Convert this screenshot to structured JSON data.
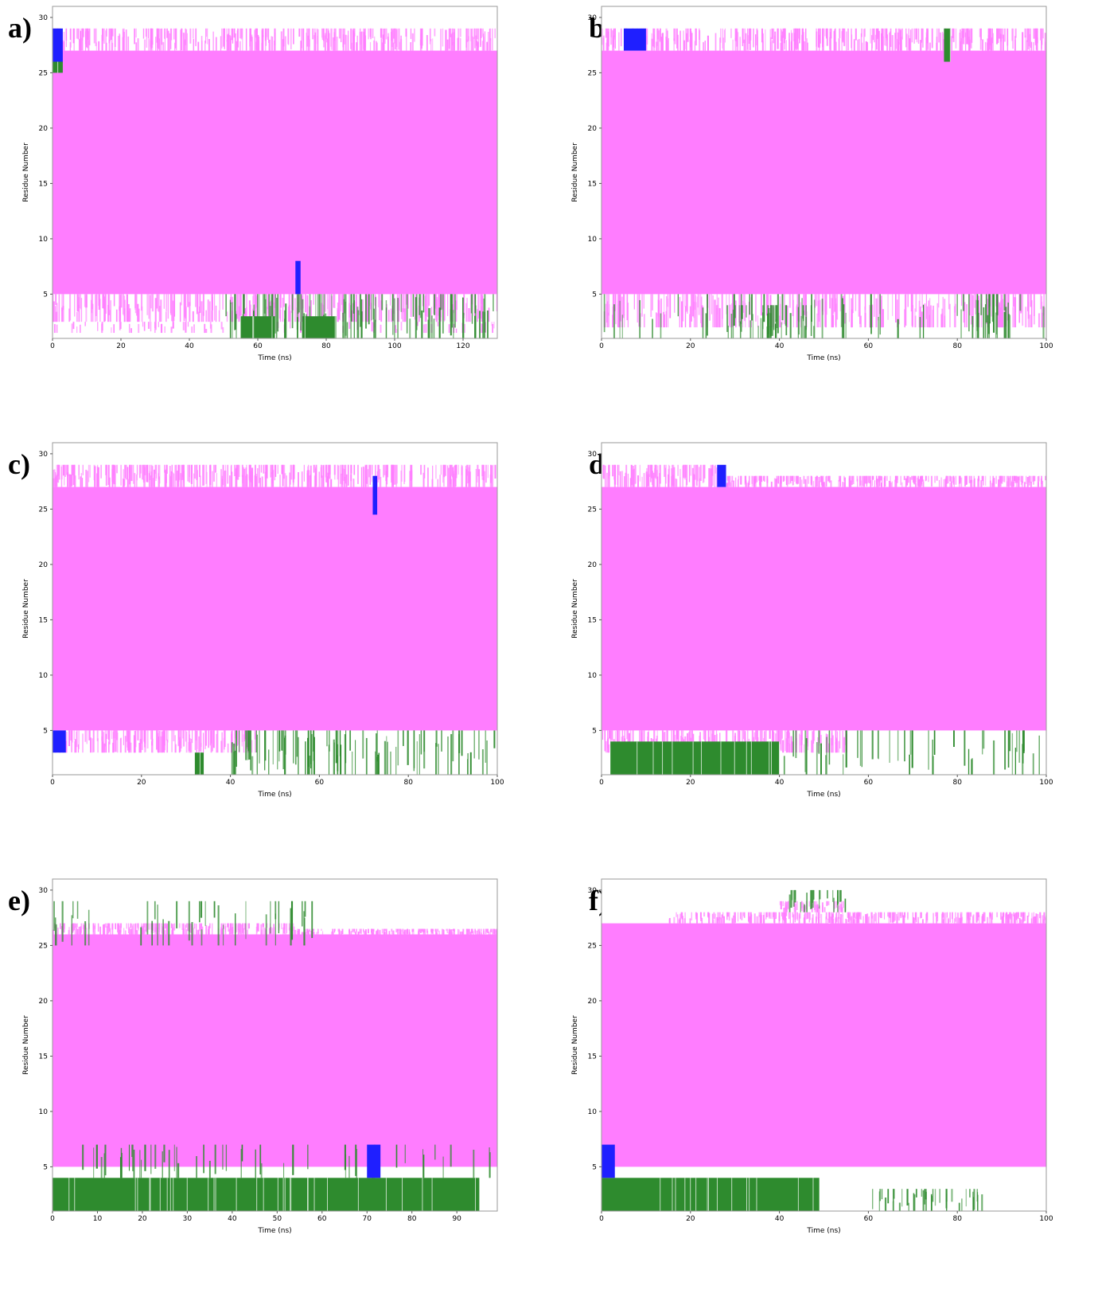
{
  "colors": {
    "coil": "#ff7dff",
    "turn": "#2e8b2e",
    "helix_310": "#1f1fff",
    "background": "#ffffff",
    "frame": "#9a9a9a"
  },
  "chart_data": [
    {
      "panel": "a)",
      "type": "heatmap",
      "xlabel": "Time (ns)",
      "ylabel": "Residue Number",
      "xlim": [
        0,
        130
      ],
      "ylim": [
        1,
        31
      ],
      "xticks": [
        0,
        20,
        40,
        60,
        80,
        100,
        120
      ],
      "yticks": [
        5,
        10,
        15,
        20,
        25,
        30
      ],
      "coil_core": [
        {
          "x": [
            0,
            130
          ],
          "y": [
            5,
            27
          ]
        }
      ],
      "coil_edges": [
        {
          "x": [
            0,
            130
          ],
          "y": [
            27,
            29
          ],
          "density": 0.7
        },
        {
          "x": [
            0,
            130
          ],
          "y": [
            2.5,
            5
          ],
          "density": 0.6
        },
        {
          "x": [
            0,
            130
          ],
          "y": [
            1.5,
            2.5
          ],
          "density": 0.15
        }
      ],
      "turn_blocks": [
        {
          "x": [
            55,
            65
          ],
          "y": [
            1,
            3
          ]
        },
        {
          "x": [
            73,
            83
          ],
          "y": [
            1,
            3
          ]
        },
        {
          "x": [
            0,
            3
          ],
          "y": [
            25,
            26
          ]
        }
      ],
      "turn_sparse": [
        {
          "x": [
            50,
            130
          ],
          "y": [
            1,
            5
          ],
          "density": 0.35
        }
      ],
      "helix_blocks": [
        {
          "x": [
            0,
            3
          ],
          "y": [
            26,
            29
          ]
        },
        {
          "x": [
            71,
            72.5
          ],
          "y": [
            5,
            8
          ]
        }
      ]
    },
    {
      "panel": "b)",
      "type": "heatmap",
      "xlabel": "Time (ns)",
      "ylabel": "Residue Number",
      "xlim": [
        0,
        100
      ],
      "ylim": [
        1,
        31
      ],
      "xticks": [
        0,
        20,
        40,
        60,
        80,
        100
      ],
      "yticks": [
        5,
        10,
        15,
        20,
        25,
        30
      ],
      "coil_core": [
        {
          "x": [
            0,
            100
          ],
          "y": [
            5,
            27
          ]
        }
      ],
      "coil_edges": [
        {
          "x": [
            0,
            100
          ],
          "y": [
            27,
            29
          ],
          "density": 0.7
        },
        {
          "x": [
            0,
            100
          ],
          "y": [
            2,
            5
          ],
          "density": 0.55
        }
      ],
      "turn_blocks": [
        {
          "x": [
            77,
            78.5
          ],
          "y": [
            26,
            29
          ]
        }
      ],
      "turn_sparse": [
        {
          "x": [
            28,
            48
          ],
          "y": [
            1,
            4
          ],
          "density": 0.4
        },
        {
          "x": [
            83,
            92
          ],
          "y": [
            1,
            5
          ],
          "density": 0.5
        },
        {
          "x": [
            0,
            100
          ],
          "y": [
            1,
            5
          ],
          "density": 0.08
        }
      ],
      "helix_blocks": [
        {
          "x": [
            5,
            10
          ],
          "y": [
            27,
            29
          ]
        }
      ]
    },
    {
      "panel": "c)",
      "type": "heatmap",
      "xlabel": "Time (ns)",
      "ylabel": "Residue Number",
      "xlim": [
        0,
        100
      ],
      "ylim": [
        1,
        31
      ],
      "xticks": [
        0,
        20,
        40,
        60,
        80,
        100
      ],
      "yticks": [
        5,
        10,
        15,
        20,
        25,
        30
      ],
      "coil_core": [
        {
          "x": [
            0,
            100
          ],
          "y": [
            5,
            27
          ]
        }
      ],
      "coil_edges": [
        {
          "x": [
            0,
            100
          ],
          "y": [
            27,
            29
          ],
          "density": 0.75
        },
        {
          "x": [
            0,
            46
          ],
          "y": [
            3,
            5
          ],
          "density": 0.7
        }
      ],
      "turn_blocks": [
        {
          "x": [
            32,
            34
          ],
          "y": [
            1,
            3
          ]
        }
      ],
      "turn_sparse": [
        {
          "x": [
            40,
            100
          ],
          "y": [
            1,
            5
          ],
          "density": 0.3
        }
      ],
      "helix_blocks": [
        {
          "x": [
            0,
            3
          ],
          "y": [
            3,
            5
          ]
        },
        {
          "x": [
            72,
            73
          ],
          "y": [
            24.5,
            28
          ]
        }
      ]
    },
    {
      "panel": "d)",
      "type": "heatmap",
      "xlabel": "Time (ns)",
      "ylabel": "Residue Number",
      "xlim": [
        0,
        100
      ],
      "ylim": [
        1,
        31
      ],
      "xticks": [
        0,
        20,
        40,
        60,
        80,
        100
      ],
      "yticks": [
        5,
        10,
        15,
        20,
        25,
        30
      ],
      "coil_core": [
        {
          "x": [
            0,
            100
          ],
          "y": [
            5,
            27
          ]
        }
      ],
      "coil_edges": [
        {
          "x": [
            0,
            26
          ],
          "y": [
            27,
            29
          ],
          "density": 0.75
        },
        {
          "x": [
            26,
            100
          ],
          "y": [
            27,
            28
          ],
          "density": 0.75
        },
        {
          "x": [
            0,
            55
          ],
          "y": [
            3,
            5
          ],
          "density": 0.7
        }
      ],
      "turn_blocks": [
        {
          "x": [
            2,
            40
          ],
          "y": [
            1,
            4
          ]
        }
      ],
      "turn_sparse": [
        {
          "x": [
            40,
            100
          ],
          "y": [
            1,
            5
          ],
          "density": 0.15
        }
      ],
      "helix_blocks": [
        {
          "x": [
            26,
            28
          ],
          "y": [
            27,
            29
          ]
        }
      ]
    },
    {
      "panel": "e)",
      "type": "heatmap",
      "xlabel": "Time (ns)",
      "ylabel": "Residue Number",
      "xlim": [
        0,
        99
      ],
      "ylim": [
        1,
        31
      ],
      "xticks": [
        0,
        10,
        20,
        30,
        40,
        50,
        60,
        70,
        80,
        90
      ],
      "yticks": [
        5,
        10,
        15,
        20,
        25,
        30
      ],
      "coil_core": [
        {
          "x": [
            0,
            99
          ],
          "y": [
            5,
            26
          ]
        }
      ],
      "coil_edges": [
        {
          "x": [
            0,
            54
          ],
          "y": [
            26,
            27
          ],
          "density": 0.8
        },
        {
          "x": [
            54,
            99
          ],
          "y": [
            26,
            26.5
          ],
          "density": 0.8
        }
      ],
      "turn_blocks": [
        {
          "x": [
            0,
            95
          ],
          "y": [
            1,
            4
          ]
        }
      ],
      "turn_sparse": [
        {
          "x": [
            0,
            99
          ],
          "y": [
            4,
            7
          ],
          "density": 0.1
        },
        {
          "x": [
            0,
            60
          ],
          "y": [
            25,
            29
          ],
          "density": 0.12
        }
      ],
      "helix_blocks": [
        {
          "x": [
            70,
            73
          ],
          "y": [
            4,
            7
          ]
        }
      ]
    },
    {
      "panel": "f)",
      "type": "heatmap",
      "xlabel": "Time (ns)",
      "ylabel": "Residue Number",
      "xlim": [
        0,
        100
      ],
      "ylim": [
        1,
        31
      ],
      "xticks": [
        0,
        20,
        40,
        60,
        80,
        100
      ],
      "yticks": [
        5,
        10,
        15,
        20,
        25,
        30
      ],
      "coil_core": [
        {
          "x": [
            0,
            100
          ],
          "y": [
            5,
            27
          ]
        }
      ],
      "coil_edges": [
        {
          "x": [
            15,
            100
          ],
          "y": [
            27,
            28
          ],
          "density": 0.75
        },
        {
          "x": [
            40,
            55
          ],
          "y": [
            28,
            29
          ],
          "density": 0.6
        }
      ],
      "turn_blocks": [
        {
          "x": [
            0,
            49
          ],
          "y": [
            1,
            4
          ]
        }
      ],
      "turn_sparse": [
        {
          "x": [
            60,
            86
          ],
          "y": [
            1,
            3
          ],
          "density": 0.3
        },
        {
          "x": [
            40,
            55
          ],
          "y": [
            28,
            30
          ],
          "density": 0.3
        }
      ],
      "helix_blocks": [
        {
          "x": [
            0,
            3
          ],
          "y": [
            4,
            7
          ]
        }
      ]
    }
  ]
}
